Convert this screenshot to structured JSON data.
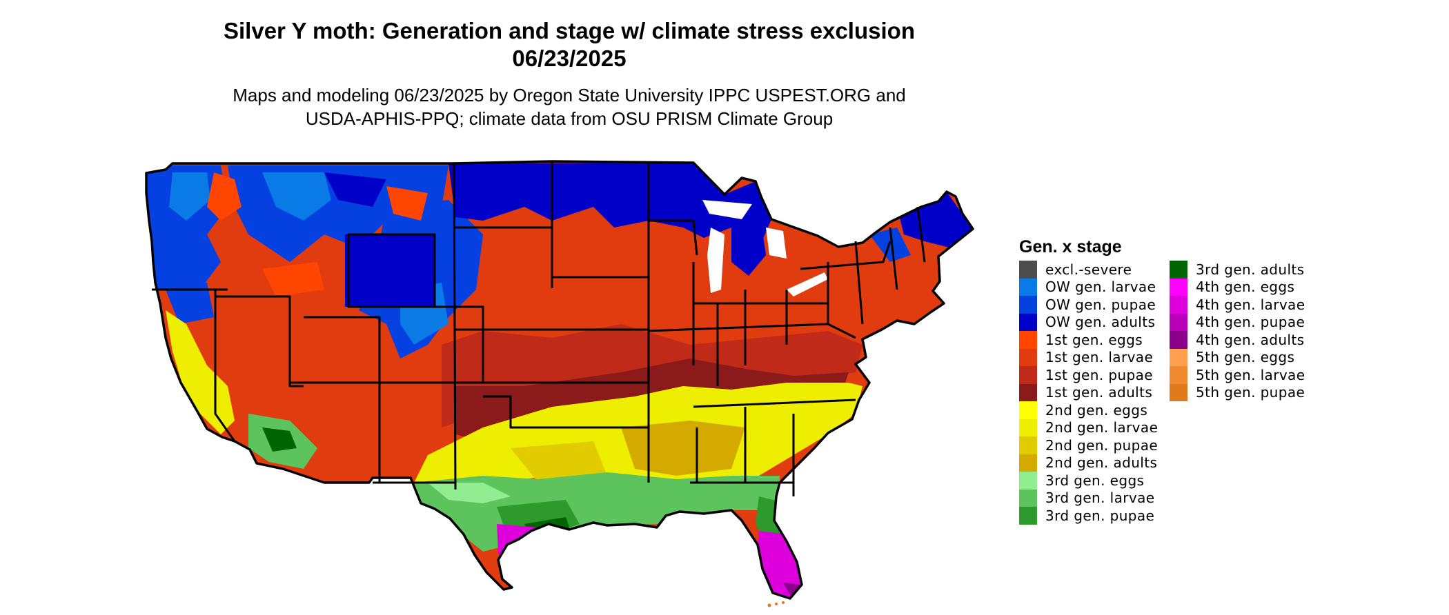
{
  "title": {
    "line1": "Silver Y moth: Generation and stage w/ climate stress exclusion",
    "line2": "06/23/2025"
  },
  "subtitle": {
    "line1": "Maps and modeling 06/23/2025 by Oregon State University IPPC USPEST.ORG and",
    "line2": "USDA-APHIS-PPQ; climate data from OSU PRISM Climate Group"
  },
  "legend": {
    "title": "Gen. x stage",
    "items": [
      {
        "label": "excl.-severe",
        "color": "#4d4d4d"
      },
      {
        "label": "OW gen. larvae",
        "color": "#0a7ae6"
      },
      {
        "label": "OW gen. pupae",
        "color": "#0540e0"
      },
      {
        "label": "OW gen. adults",
        "color": "#0000c8"
      },
      {
        "label": "1st gen. eggs",
        "color": "#ff4500"
      },
      {
        "label": "1st gen. larvae",
        "color": "#e03c10"
      },
      {
        "label": "1st gen. pupae",
        "color": "#c02a18"
      },
      {
        "label": "1st gen. adults",
        "color": "#8b1a1a"
      },
      {
        "label": "2nd gen. eggs",
        "color": "#ffff00"
      },
      {
        "label": "2nd gen. larvae",
        "color": "#eeee00"
      },
      {
        "label": "2nd gen. pupae",
        "color": "#e0cc00"
      },
      {
        "label": "2nd gen. adults",
        "color": "#d4aa00"
      },
      {
        "label": "3rd gen. eggs",
        "color": "#90ee90"
      },
      {
        "label": "3rd gen. larvae",
        "color": "#5dc45d"
      },
      {
        "label": "3rd gen. pupae",
        "color": "#2e9a2e"
      },
      {
        "label": "3rd gen. adults",
        "color": "#006400"
      },
      {
        "label": "4th gen. eggs",
        "color": "#ff00ff"
      },
      {
        "label": "4th gen. larvae",
        "color": "#dd00dd"
      },
      {
        "label": "4th gen. pupae",
        "color": "#b800b8"
      },
      {
        "label": "4th gen. adults",
        "color": "#8b008b"
      },
      {
        "label": "5th gen. eggs",
        "color": "#ffa050"
      },
      {
        "label": "5th gen. larvae",
        "color": "#f08a30"
      },
      {
        "label": "5th gen. pupae",
        "color": "#e07a1a"
      }
    ]
  }
}
